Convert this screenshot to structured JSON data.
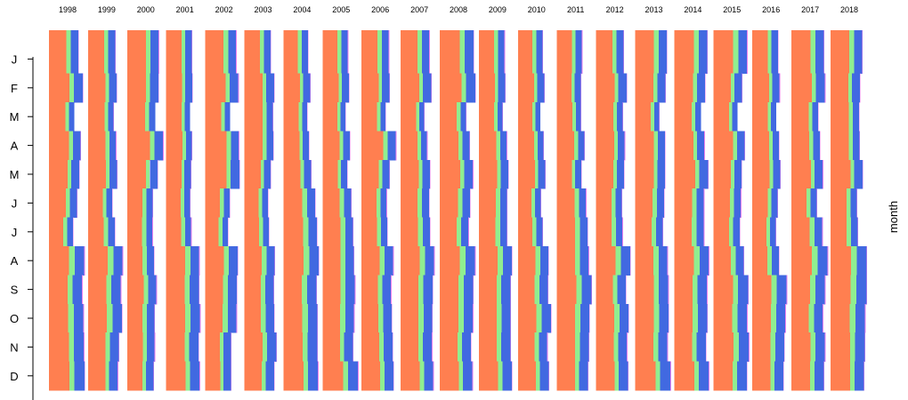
{
  "chart_data": {
    "type": "bar",
    "orientation": "horizontal",
    "layout": "small-multiples",
    "stacked": true,
    "panels": [
      "1998",
      "1999",
      "2000",
      "2001",
      "2002",
      "2003",
      "2004",
      "2005",
      "2006",
      "2007",
      "2008",
      "2009",
      "2010",
      "2011",
      "2012",
      "2013",
      "2014",
      "2015",
      "2016",
      "2017",
      "2018"
    ],
    "categories": [
      "J",
      "F",
      "M",
      "A",
      "M",
      "J",
      "J",
      "A",
      "S",
      "O",
      "N",
      "D"
    ],
    "ylabel": "month",
    "colors": [
      "#ff7f50",
      "#90ee90",
      "#4169e1",
      "#ee82ee"
    ],
    "xlim": [
      0,
      1
    ],
    "grid": false,
    "series_shares_by_month": [
      [
        0.58,
        0.15,
        0.25,
        0.02
      ],
      [
        0.6,
        0.12,
        0.26,
        0.02
      ],
      [
        0.64,
        0.14,
        0.21,
        0.01
      ],
      [
        0.62,
        0.13,
        0.23,
        0.02
      ],
      [
        0.61,
        0.12,
        0.25,
        0.02
      ],
      [
        0.59,
        0.15,
        0.24,
        0.02
      ],
      [
        0.58,
        0.16,
        0.24,
        0.02
      ],
      [
        0.56,
        0.16,
        0.26,
        0.02
      ],
      [
        0.55,
        0.15,
        0.28,
        0.02
      ],
      [
        0.55,
        0.16,
        0.27,
        0.02
      ],
      [
        0.56,
        0.14,
        0.28,
        0.02
      ],
      [
        0.57,
        0.13,
        0.28,
        0.02
      ]
    ],
    "row_extent_by_panel_and_month": [
      [
        0.8,
        0.92,
        0.68,
        0.86,
        0.82,
        0.76,
        0.66,
        0.96,
        0.9,
        0.94,
        0.95,
        0.97
      ],
      [
        0.74,
        0.78,
        0.69,
        0.76,
        0.79,
        0.66,
        0.73,
        0.94,
        0.89,
        0.92,
        0.84,
        0.81
      ],
      [
        0.86,
        0.85,
        0.76,
        0.98,
        0.83,
        0.7,
        0.69,
        0.73,
        0.8,
        0.74,
        0.75,
        0.72
      ],
      [
        0.7,
        0.71,
        0.64,
        0.7,
        0.67,
        0.65,
        0.68,
        0.9,
        0.89,
        0.92,
        0.88,
        0.91
      ],
      [
        0.84,
        0.9,
        0.67,
        0.91,
        0.93,
        0.67,
        0.62,
        0.88,
        0.86,
        0.85,
        0.7,
        0.7
      ],
      [
        0.72,
        0.81,
        0.77,
        0.79,
        0.72,
        0.64,
        0.67,
        0.82,
        0.8,
        0.81,
        0.87,
        0.81
      ],
      [
        0.67,
        0.73,
        0.64,
        0.69,
        0.75,
        0.86,
        0.91,
        0.96,
        0.9,
        0.92,
        0.92,
        0.94
      ],
      [
        0.69,
        0.72,
        0.62,
        0.74,
        0.67,
        0.78,
        0.83,
        0.85,
        0.88,
        0.86,
        0.83,
        0.97
      ],
      [
        0.74,
        0.76,
        0.65,
        0.93,
        0.76,
        0.68,
        0.7,
        0.86,
        0.8,
        0.82,
        0.84,
        0.87
      ],
      [
        0.78,
        0.83,
        0.64,
        0.72,
        0.8,
        0.77,
        0.8,
        0.91,
        0.87,
        0.86,
        0.85,
        0.89
      ],
      [
        0.92,
        0.97,
        0.71,
        0.81,
        0.9,
        0.82,
        0.78,
        0.96,
        0.91,
        0.9,
        0.85,
        0.89
      ],
      [
        0.7,
        0.72,
        0.64,
        0.76,
        0.8,
        0.77,
        0.77,
        0.9,
        0.86,
        0.86,
        0.86,
        0.9
      ],
      [
        0.67,
        0.72,
        0.6,
        0.7,
        0.74,
        0.62,
        0.67,
        0.83,
        0.82,
        0.9,
        0.8,
        0.84
      ],
      [
        0.68,
        0.65,
        0.65,
        0.75,
        0.66,
        0.79,
        0.83,
        0.86,
        0.94,
        0.88,
        0.87,
        0.84
      ],
      [
        0.75,
        0.83,
        0.72,
        0.78,
        0.76,
        0.7,
        0.72,
        0.93,
        0.81,
        0.88,
        0.84,
        0.87
      ],
      [
        0.86,
        0.82,
        0.65,
        0.81,
        0.81,
        0.79,
        0.75,
        0.88,
        0.9,
        0.91,
        0.88,
        0.96
      ],
      [
        0.9,
        0.84,
        0.72,
        0.82,
        0.92,
        0.81,
        0.81,
        0.94,
        0.89,
        0.9,
        0.86,
        0.94
      ],
      [
        0.92,
        0.78,
        0.65,
        0.85,
        0.77,
        0.75,
        0.72,
        0.83,
        0.95,
        0.92,
        0.97,
        0.91
      ],
      [
        0.7,
        0.74,
        0.64,
        0.73,
        0.76,
        0.69,
        0.64,
        0.72,
        0.93,
        0.9,
        0.87,
        0.84
      ],
      [
        0.88,
        0.91,
        0.72,
        0.77,
        0.85,
        0.69,
        0.84,
        0.98,
        0.91,
        0.85,
        0.91,
        0.88
      ],
      [
        0.86,
        0.8,
        0.77,
        0.79,
        0.87,
        0.72,
        0.74,
        0.98,
        0.98,
        0.94,
        0.93,
        0.91
      ]
    ]
  }
}
